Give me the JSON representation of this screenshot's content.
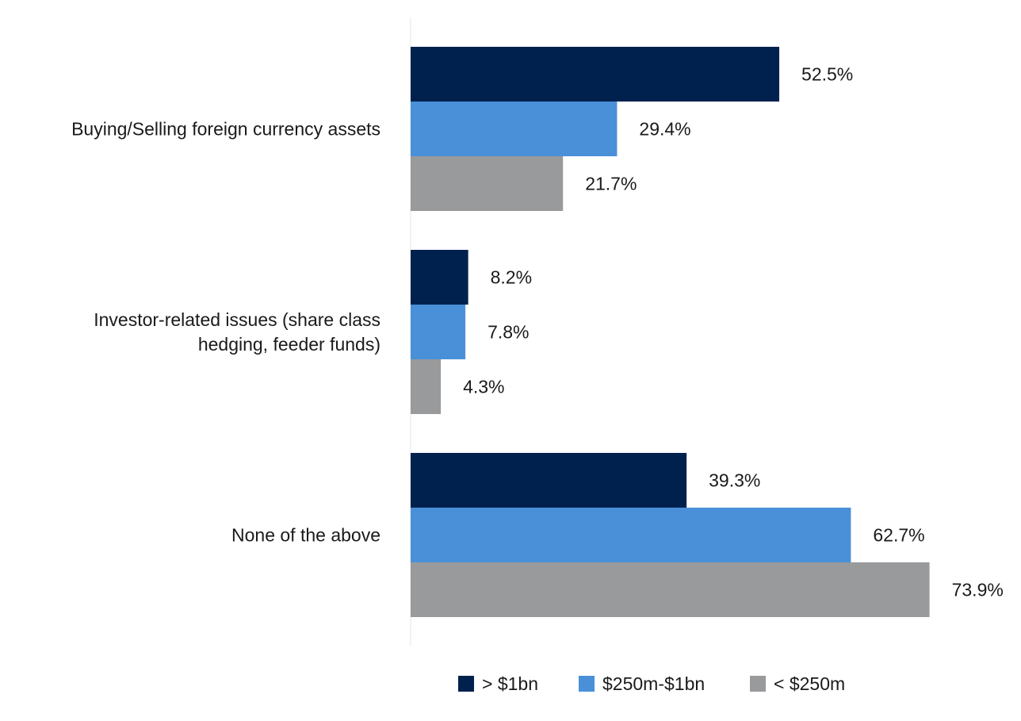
{
  "chart_data": {
    "type": "bar",
    "orientation": "horizontal",
    "categories": [
      [
        "Buying/Selling foreign currency assets"
      ],
      [
        "Investor-related issues (share class",
        "hedging, feeder funds)"
      ],
      [
        "None of the above"
      ]
    ],
    "series": [
      {
        "name": "> $1bn",
        "color": "#00214d",
        "values": [
          52.5,
          8.2,
          39.3
        ],
        "labels": [
          "52.5%",
          "8.2%",
          "39.3%"
        ]
      },
      {
        "name": "$250m-$1bn",
        "color": "#4a90d9",
        "values": [
          29.4,
          7.8,
          62.7
        ],
        "labels": [
          "29.4%",
          "7.8%",
          "62.7%"
        ]
      },
      {
        "name": "< $250m",
        "color": "#999a9c",
        "values": [
          21.7,
          4.3,
          73.9
        ],
        "labels": [
          "21.7%",
          "4.3%",
          "73.9%"
        ]
      }
    ],
    "xlim": [
      0,
      80
    ],
    "title": "",
    "xlabel": "",
    "ylabel": "",
    "grid": false,
    "legend_position": "bottom"
  },
  "colors": {
    "axis_line": "#e6e6e6"
  }
}
